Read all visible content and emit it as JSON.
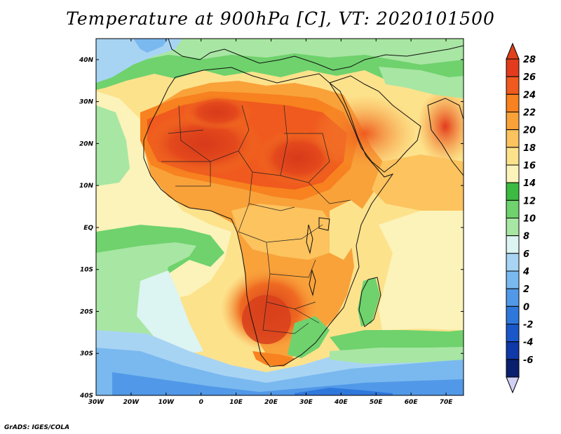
{
  "title": "Temperature at 900hPa [C], VT: 2020101500",
  "credit": "GrADS: IGES/COLA",
  "map": {
    "variable": "Temperature",
    "level": "900hPa",
    "units": "C",
    "valid_time": "2020101500",
    "lon_range": [
      -30,
      75
    ],
    "lat_range": [
      -40,
      45
    ],
    "x_ticks": [
      {
        "value": -30,
        "label": "30W"
      },
      {
        "value": -20,
        "label": "20W"
      },
      {
        "value": -10,
        "label": "10W"
      },
      {
        "value": 0,
        "label": "0"
      },
      {
        "value": 10,
        "label": "10E"
      },
      {
        "value": 20,
        "label": "20E"
      },
      {
        "value": 30,
        "label": "30E"
      },
      {
        "value": 40,
        "label": "40E"
      },
      {
        "value": 50,
        "label": "50E"
      },
      {
        "value": 60,
        "label": "60E"
      },
      {
        "value": 70,
        "label": "70E"
      }
    ],
    "y_ticks": [
      {
        "value": 40,
        "label": "40N"
      },
      {
        "value": 30,
        "label": "30N"
      },
      {
        "value": 20,
        "label": "20N"
      },
      {
        "value": 10,
        "label": "10N"
      },
      {
        "value": 0,
        "label": "EQ"
      },
      {
        "value": -10,
        "label": "10S"
      },
      {
        "value": -20,
        "label": "20S"
      },
      {
        "value": -30,
        "label": "30S"
      },
      {
        "value": -40,
        "label": "40S"
      }
    ]
  },
  "colorbar": {
    "top_color": "#e0401a",
    "levels": [
      {
        "label": "28",
        "color": "#e23c1c"
      },
      {
        "label": "26",
        "color": "#f05a1e"
      },
      {
        "label": "24",
        "color": "#f7821f"
      },
      {
        "label": "22",
        "color": "#f9a23a"
      },
      {
        "label": "20",
        "color": "#fcc35e"
      },
      {
        "label": "18",
        "color": "#fde28c"
      },
      {
        "label": "16",
        "color": "#fbf3ba"
      },
      {
        "label": "14",
        "color": "#3cba41"
      },
      {
        "label": "12",
        "color": "#6fd26d"
      },
      {
        "label": "10",
        "color": "#a8e6a3"
      },
      {
        "label": "8",
        "color": "#dcf4f2"
      },
      {
        "label": "6",
        "color": "#a8d4f4"
      },
      {
        "label": "4",
        "color": "#7ab9ef"
      },
      {
        "label": "2",
        "color": "#5199e8"
      },
      {
        "label": "0",
        "color": "#2f78db"
      },
      {
        "label": "-2",
        "color": "#1a58c9"
      },
      {
        "label": "-4",
        "color": "#0f38a8"
      },
      {
        "label": "-6",
        "color": "#0a1f6e"
      }
    ],
    "bottom_color": "#d2d0f4"
  },
  "colors": {
    "ocean_green": "#a8e6a3",
    "hot_core": "#d8341a",
    "southern_ocean": "#5199e8"
  }
}
